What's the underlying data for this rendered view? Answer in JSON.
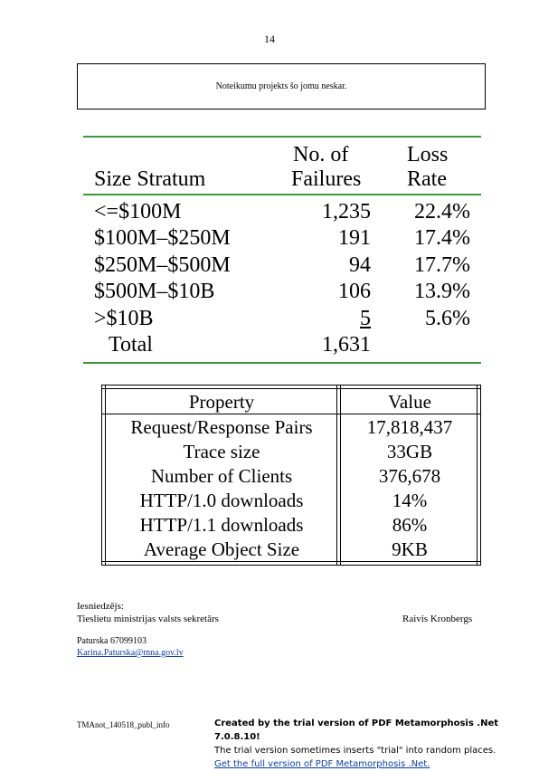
{
  "page_number": "14",
  "note": "Noteikumu projekts šo jomu neskar.",
  "table1": {
    "headers": {
      "size_stratum": "Size Stratum",
      "failures_line1": "No. of",
      "failures_line2": "Failures",
      "loss_line1": "Loss",
      "loss_line2": "Rate"
    },
    "rows": [
      {
        "size": "<=$100M",
        "failures": "1,235",
        "loss": "22.4%"
      },
      {
        "size": "$100M–$250M",
        "failures": "191",
        "loss": "17.4%"
      },
      {
        "size": "$250M–$500M",
        "failures": "94",
        "loss": "17.7%"
      },
      {
        "size": "$500M–$10B",
        "failures": "106",
        "loss": "13.9%"
      },
      {
        "size": ">$10B",
        "failures": "5",
        "loss": "5.6%"
      }
    ],
    "total": {
      "label": "Total",
      "failures": "1,631"
    }
  },
  "table2": {
    "headers": {
      "property": "Property",
      "value": "Value"
    },
    "rows": [
      {
        "property": "Request/Response Pairs",
        "value": "17,818,437"
      },
      {
        "property": "Trace size",
        "value": "33GB"
      },
      {
        "property": "Number of Clients",
        "value": "376,678"
      },
      {
        "property": "HTTP/1.0 downloads",
        "value": "14%"
      },
      {
        "property": "HTTP/1.1 downloads",
        "value": "86%"
      },
      {
        "property": "Average Object Size",
        "value": "9KB"
      }
    ]
  },
  "signature": {
    "submitted_label": "Iesniedzējs:",
    "position": "Tieslietu ministrijas valsts sekretārs",
    "name": "Raivis Kronbergs"
  },
  "contact": {
    "name_phone": "Paturska 67099103",
    "email": "Karina.Paturska@mna.gov.lv"
  },
  "footer": {
    "file_id": "TMAnot_140518_publ_info",
    "trial_line1": "Created by the trial version of PDF Metamorphosis .Net 7.0.8.10!",
    "trial_line2": "The trial version sometimes inserts \"trial\" into random places.",
    "trial_line3": "Get the full version of PDF Metamorphosis .Net."
  },
  "colors": {
    "rule_green": "#3a9a3a",
    "link_blue": "#0b3ea8"
  }
}
